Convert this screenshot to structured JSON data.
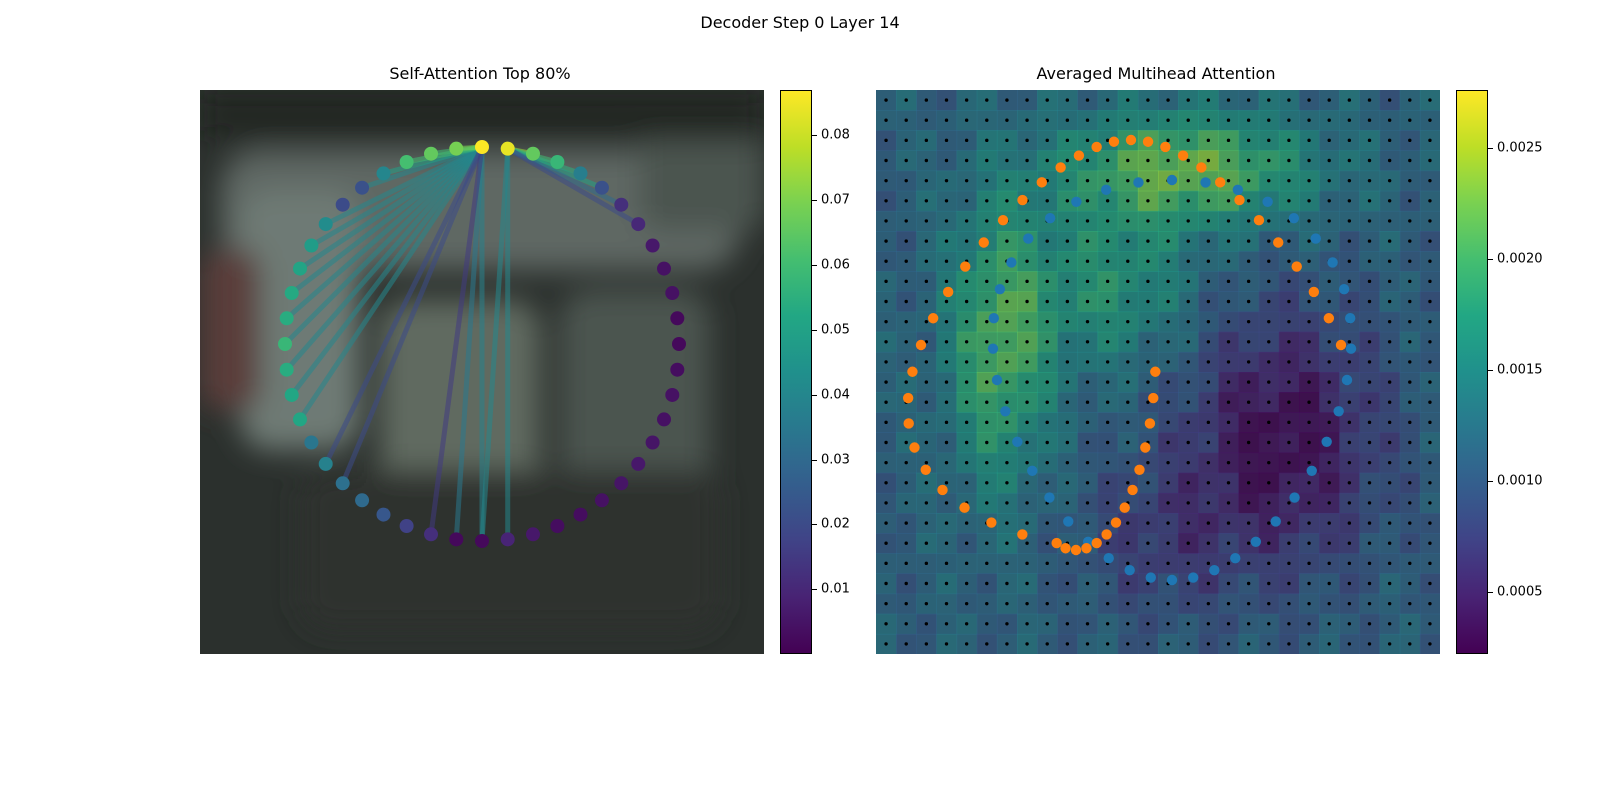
{
  "figure": {
    "title": "Decoder Step 0 Layer 14"
  },
  "chart_data": [
    {
      "type": "scatter",
      "title": "Self-Attention Top 80%",
      "description_kind": "ring of 48 query points over a blurred photo background, colored by attention weight, with attention lines from top points",
      "colormap": "viridis",
      "colorbar": {
        "range": [
          0.0,
          0.087
        ],
        "ticks": [
          0.01,
          0.02,
          0.03,
          0.04,
          0.05,
          0.06,
          0.07,
          0.08
        ],
        "tick_labels": [
          "0.01",
          "0.02",
          "0.03",
          "0.04",
          "0.05",
          "0.06",
          "0.07",
          "0.08"
        ]
      },
      "points_angle_deg": [
        0,
        7.5,
        15,
        22.5,
        30,
        37.5,
        45,
        52.5,
        60,
        67.5,
        75,
        82.5,
        90,
        97.5,
        105,
        112.5,
        120,
        127.5,
        135,
        142.5,
        150,
        157.5,
        165,
        172.5,
        180,
        187.5,
        195,
        202.5,
        210,
        217.5,
        225,
        232.5,
        240,
        247.5,
        255,
        262.5,
        270,
        277.5,
        285,
        292.5,
        300,
        307.5,
        315,
        322.5,
        330,
        337.5,
        345,
        352.5
      ],
      "values": [
        0.087,
        0.084,
        0.066,
        0.058,
        0.037,
        0.022,
        0.012,
        0.01,
        0.006,
        0.004,
        0.004,
        0.002,
        0.002,
        0.003,
        0.004,
        0.004,
        0.005,
        0.006,
        0.005,
        0.004,
        0.003,
        0.003,
        0.006,
        0.009,
        0.002,
        0.002,
        0.012,
        0.017,
        0.024,
        0.03,
        0.032,
        0.038,
        0.034,
        0.052,
        0.052,
        0.054,
        0.058,
        0.054,
        0.053,
        0.051,
        0.048,
        0.042,
        0.02,
        0.022,
        0.04,
        0.061,
        0.066,
        0.069
      ],
      "attention_edges": [
        {
          "from": 0,
          "to": 25,
          "weight": 0.035
        },
        {
          "from": 0,
          "to": 24,
          "weight": 0.038
        },
        {
          "from": 1,
          "to": 23,
          "weight": 0.04
        },
        {
          "from": 1,
          "to": 24,
          "weight": 0.04
        },
        {
          "from": 0,
          "to": 36,
          "weight": 0.04
        },
        {
          "from": 0,
          "to": 37,
          "weight": 0.04
        },
        {
          "from": 0,
          "to": 38,
          "weight": 0.04
        },
        {
          "from": 0,
          "to": 35,
          "weight": 0.04
        },
        {
          "from": 0,
          "to": 34,
          "weight": 0.04
        },
        {
          "from": 0,
          "to": 33,
          "weight": 0.04
        },
        {
          "from": 0,
          "to": 39,
          "weight": 0.04
        },
        {
          "from": 0,
          "to": 40,
          "weight": 0.04
        },
        {
          "from": 0,
          "to": 41,
          "weight": 0.04
        },
        {
          "from": 0,
          "to": 43,
          "weight": 0.04
        },
        {
          "from": 0,
          "to": 44,
          "weight": 0.05
        },
        {
          "from": 0,
          "to": 45,
          "weight": 0.06
        },
        {
          "from": 0,
          "to": 46,
          "weight": 0.06
        },
        {
          "from": 0,
          "to": 47,
          "weight": 0.07
        },
        {
          "from": 1,
          "to": 2,
          "weight": 0.075
        },
        {
          "from": 1,
          "to": 3,
          "weight": 0.06
        },
        {
          "from": 1,
          "to": 4,
          "weight": 0.055
        },
        {
          "from": 1,
          "to": 5,
          "weight": 0.05
        },
        {
          "from": 1,
          "to": 6,
          "weight": 0.03
        },
        {
          "from": 1,
          "to": 7,
          "weight": 0.02
        },
        {
          "from": 0,
          "to": 30,
          "weight": 0.02
        },
        {
          "from": 0,
          "to": 31,
          "weight": 0.02
        },
        {
          "from": 0,
          "to": 26,
          "weight": 0.015
        }
      ]
    },
    {
      "type": "heatmap",
      "title": "Averaged Multihead Attention",
      "description_kind": "28x28 attention heatmap with grid of black sample dots and two overlaid rings of blue and orange points",
      "colormap": "viridis",
      "colorbar": {
        "range": [
          0.00022,
          0.00276
        ],
        "ticks": [
          0.0005,
          0.001,
          0.0015,
          0.002,
          0.0025
        ],
        "tick_labels": [
          "0.0005",
          "0.0010",
          "0.0015",
          "0.0020",
          "0.0025"
        ]
      },
      "grid": {
        "rows": 28,
        "cols": 28
      },
      "series": [
        {
          "color": "#1f77b4",
          "points_approx": 40
        },
        {
          "color": "#ff7f0e",
          "points_approx": 48
        }
      ]
    }
  ]
}
